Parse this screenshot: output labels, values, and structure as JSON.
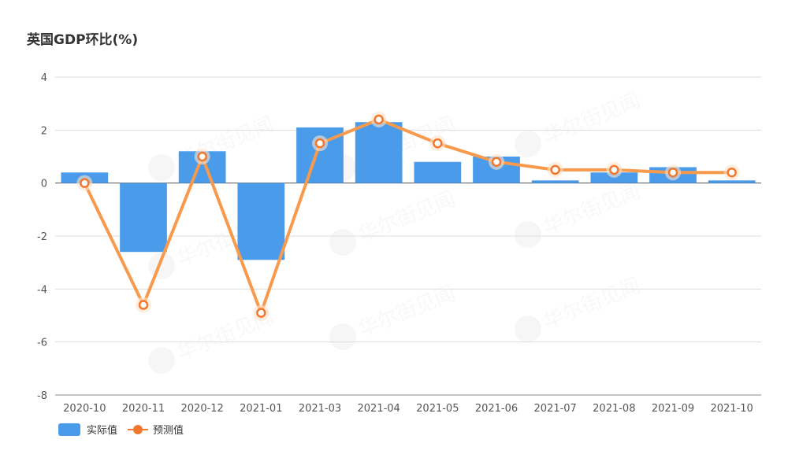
{
  "colors": {
    "actual": "#4a9bea",
    "forecast": "#f79a4d",
    "forecast_dot": "#f3772c",
    "grid": "#dddddd",
    "axis": "#888888"
  },
  "chart_data": {
    "type": "bar",
    "title": "英国GDP环比(%)",
    "categories": [
      "2020-10",
      "2020-11",
      "2020-12",
      "2021-01",
      "2021-03",
      "2021-04",
      "2021-05",
      "2021-06",
      "2021-07",
      "2021-08",
      "2021-09",
      "2021-10"
    ],
    "series": [
      {
        "name": "实际值",
        "type": "bar",
        "values": [
          0.4,
          -2.6,
          1.2,
          -2.9,
          2.1,
          2.3,
          0.8,
          1.0,
          0.1,
          0.4,
          0.6,
          0.1
        ]
      },
      {
        "name": "预测值",
        "type": "line",
        "values": [
          0.0,
          -4.6,
          1.0,
          -4.9,
          1.5,
          2.4,
          1.5,
          0.8,
          0.5,
          0.5,
          0.4,
          0.4
        ]
      }
    ],
    "ylim": [
      -8,
      4
    ],
    "yticks": [
      4,
      2,
      0,
      -2,
      -4,
      -6,
      -8
    ],
    "xlabel": "",
    "ylabel": "",
    "grid": true,
    "legend_position": "bottom-left"
  },
  "watermark": {
    "text": "华尔街见闻",
    "logo": "W"
  }
}
